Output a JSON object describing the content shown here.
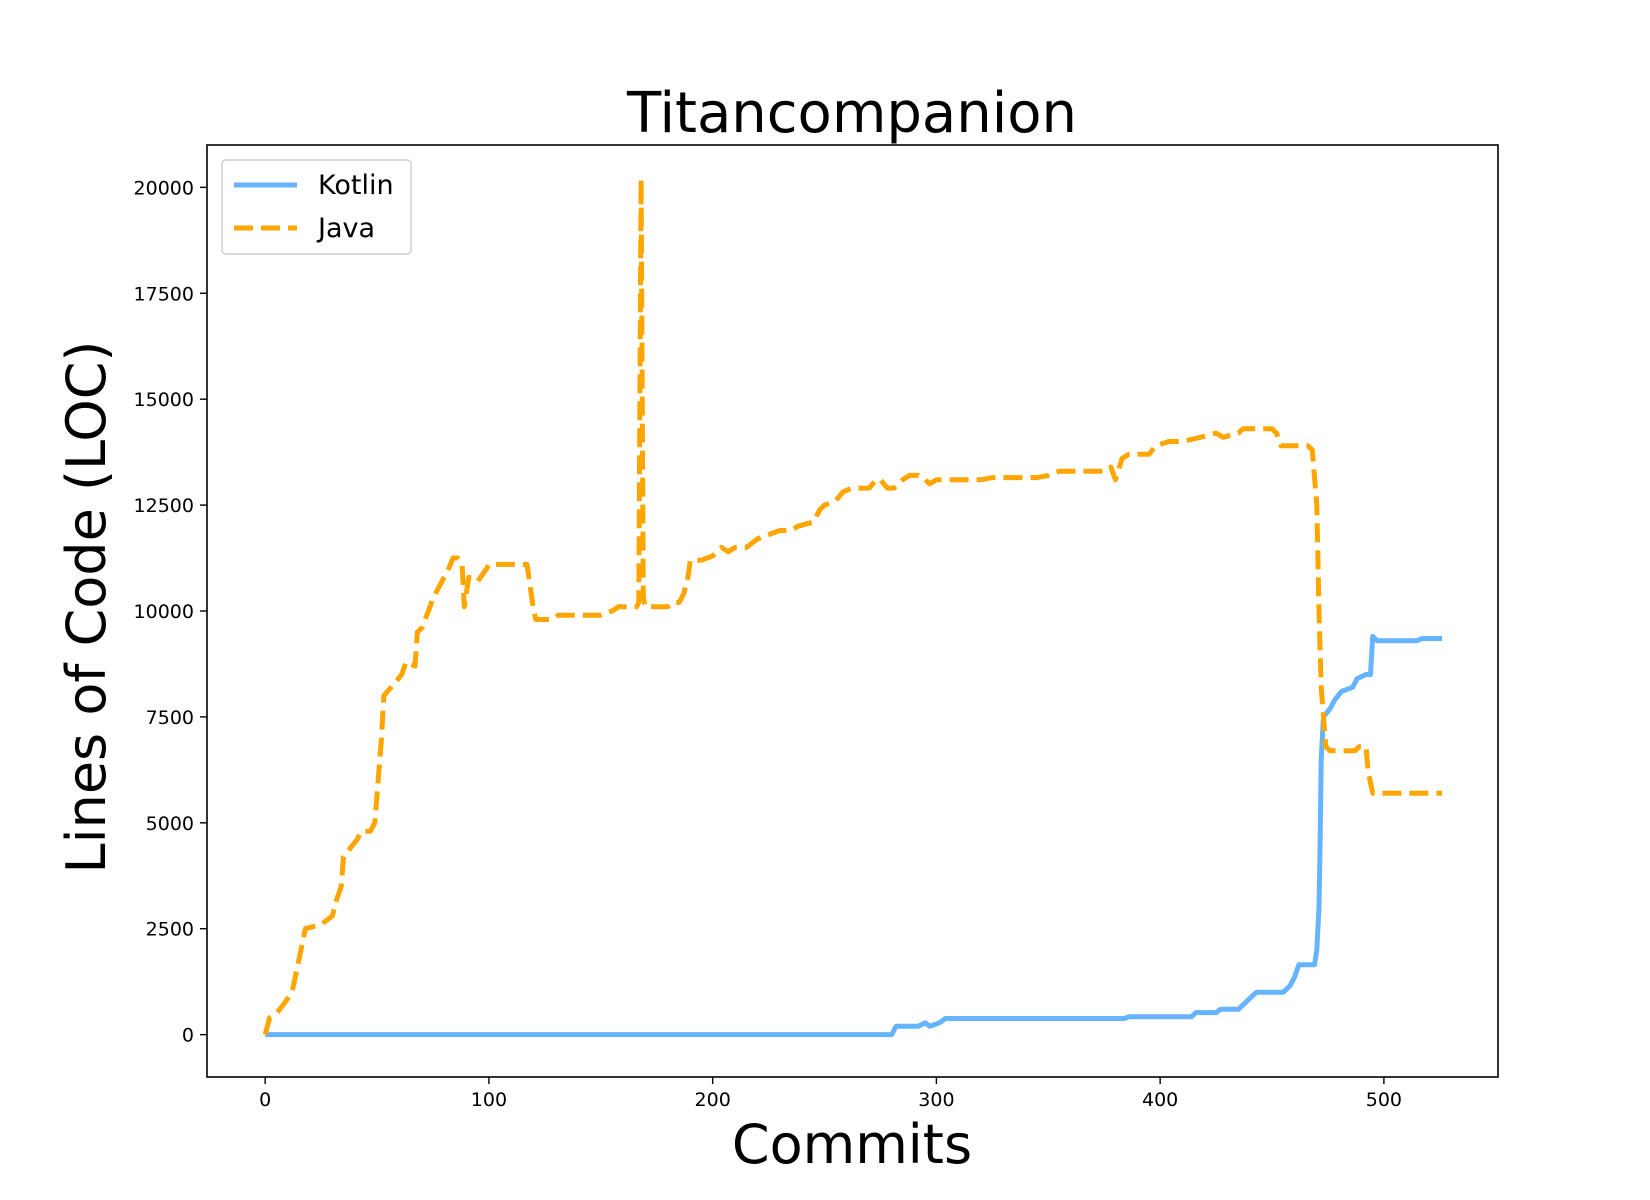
{
  "chart_data": {
    "type": "line",
    "title": "Titancompanion",
    "xlabel": "Commits",
    "ylabel": "Lines of Code (LOC)",
    "xlim": [
      -26,
      551
    ],
    "ylim": [
      -1000,
      21000
    ],
    "x_ticks": [
      0,
      100,
      200,
      300,
      400,
      500
    ],
    "y_ticks": [
      0,
      2500,
      5000,
      7500,
      10000,
      12500,
      15000,
      17500,
      20000
    ],
    "grid": false,
    "legend": "top-left",
    "series": [
      {
        "name": "Kotlin",
        "color": "#66b3ff",
        "style": "solid",
        "points": [
          [
            0,
            0
          ],
          [
            280,
            0
          ],
          [
            282,
            200
          ],
          [
            292,
            200
          ],
          [
            295,
            280
          ],
          [
            297,
            200
          ],
          [
            300,
            250
          ],
          [
            302,
            300
          ],
          [
            304,
            380
          ],
          [
            330,
            380
          ],
          [
            370,
            380
          ],
          [
            384,
            380
          ],
          [
            386,
            420
          ],
          [
            410,
            420
          ],
          [
            414,
            420
          ],
          [
            416,
            520
          ],
          [
            425,
            520
          ],
          [
            427,
            600
          ],
          [
            435,
            600
          ],
          [
            440,
            850
          ],
          [
            443,
            1000
          ],
          [
            455,
            1000
          ],
          [
            458,
            1150
          ],
          [
            460,
            1350
          ],
          [
            462,
            1650
          ],
          [
            469,
            1650
          ],
          [
            470,
            2000
          ],
          [
            471,
            3000
          ],
          [
            471.5,
            4500
          ],
          [
            472,
            6500
          ],
          [
            473,
            7500
          ],
          [
            476,
            7700
          ],
          [
            478,
            7900
          ],
          [
            481,
            8100
          ],
          [
            486,
            8200
          ],
          [
            488,
            8400
          ],
          [
            492,
            8500
          ],
          [
            494,
            8500
          ],
          [
            495,
            9400
          ],
          [
            497,
            9300
          ],
          [
            515,
            9300
          ],
          [
            517,
            9350
          ],
          [
            526,
            9350
          ]
        ]
      },
      {
        "name": "Java",
        "color": "#ffa500",
        "style": "dashed",
        "points": [
          [
            0,
            0
          ],
          [
            2,
            400
          ],
          [
            5,
            500
          ],
          [
            8,
            700
          ],
          [
            12,
            1000
          ],
          [
            14,
            1500
          ],
          [
            16,
            2000
          ],
          [
            18,
            2500
          ],
          [
            25,
            2600
          ],
          [
            30,
            2800
          ],
          [
            32,
            3200
          ],
          [
            34,
            3500
          ],
          [
            35,
            4200
          ],
          [
            38,
            4400
          ],
          [
            41,
            4600
          ],
          [
            43,
            4800
          ],
          [
            47,
            4800
          ],
          [
            49,
            5000
          ],
          [
            52,
            7000
          ],
          [
            53,
            8000
          ],
          [
            58,
            8300
          ],
          [
            61,
            8500
          ],
          [
            63,
            8800
          ],
          [
            67,
            8700
          ],
          [
            68,
            9500
          ],
          [
            70,
            9600
          ],
          [
            73,
            10000
          ],
          [
            75,
            10300
          ],
          [
            78,
            10600
          ],
          [
            80,
            10800
          ],
          [
            82,
            11000
          ],
          [
            84,
            11250
          ],
          [
            86,
            11250
          ],
          [
            88,
            11100
          ],
          [
            89,
            10100
          ],
          [
            91,
            10800
          ],
          [
            95,
            10700
          ],
          [
            99,
            11000
          ],
          [
            100,
            11100
          ],
          [
            117,
            11100
          ],
          [
            120,
            10000
          ],
          [
            121,
            9800
          ],
          [
            128,
            9800
          ],
          [
            131,
            9900
          ],
          [
            150,
            9900
          ],
          [
            155,
            10000
          ],
          [
            158,
            10100
          ],
          [
            162,
            10100
          ],
          [
            166,
            10100
          ],
          [
            167,
            10200
          ],
          [
            168,
            20200
          ],
          [
            169,
            10300
          ],
          [
            170,
            10100
          ],
          [
            180,
            10100
          ],
          [
            182,
            10200
          ],
          [
            185,
            10200
          ],
          [
            187,
            10400
          ],
          [
            189,
            10800
          ],
          [
            190,
            11200
          ],
          [
            195,
            11200
          ],
          [
            200,
            11300
          ],
          [
            204,
            11500
          ],
          [
            207,
            11400
          ],
          [
            210,
            11500
          ],
          [
            215,
            11500
          ],
          [
            220,
            11700
          ],
          [
            225,
            11800
          ],
          [
            230,
            11900
          ],
          [
            235,
            11900
          ],
          [
            238,
            12000
          ],
          [
            245,
            12100
          ],
          [
            248,
            12400
          ],
          [
            250,
            12500
          ],
          [
            255,
            12600
          ],
          [
            258,
            12800
          ],
          [
            262,
            12900
          ],
          [
            270,
            12900
          ],
          [
            273,
            13100
          ],
          [
            275,
            13100
          ],
          [
            278,
            12900
          ],
          [
            281,
            12900
          ],
          [
            283,
            13000
          ],
          [
            285,
            13100
          ],
          [
            288,
            13200
          ],
          [
            292,
            13200
          ],
          [
            295,
            13100
          ],
          [
            297,
            13000
          ],
          [
            300,
            13100
          ],
          [
            310,
            13100
          ],
          [
            320,
            13100
          ],
          [
            325,
            13150
          ],
          [
            345,
            13150
          ],
          [
            350,
            13200
          ],
          [
            355,
            13300
          ],
          [
            375,
            13300
          ],
          [
            378,
            13400
          ],
          [
            380,
            13100
          ],
          [
            383,
            13600
          ],
          [
            386,
            13700
          ],
          [
            395,
            13700
          ],
          [
            398,
            13900
          ],
          [
            404,
            14000
          ],
          [
            410,
            14000
          ],
          [
            418,
            14100
          ],
          [
            425,
            14200
          ],
          [
            428,
            14100
          ],
          [
            435,
            14200
          ],
          [
            437,
            14300
          ],
          [
            445,
            14300
          ],
          [
            450,
            14300
          ],
          [
            452,
            14200
          ],
          [
            454,
            13900
          ],
          [
            460,
            13900
          ],
          [
            466,
            13900
          ],
          [
            468,
            13800
          ],
          [
            470,
            12500
          ],
          [
            471,
            10000
          ],
          [
            472,
            8200
          ],
          [
            473,
            7500
          ],
          [
            474,
            6800
          ],
          [
            476,
            6700
          ],
          [
            487,
            6700
          ],
          [
            489,
            6800
          ],
          [
            492,
            6800
          ],
          [
            493,
            6200
          ],
          [
            495,
            5700
          ],
          [
            505,
            5700
          ],
          [
            510,
            5700
          ],
          [
            526,
            5700
          ]
        ]
      }
    ]
  }
}
